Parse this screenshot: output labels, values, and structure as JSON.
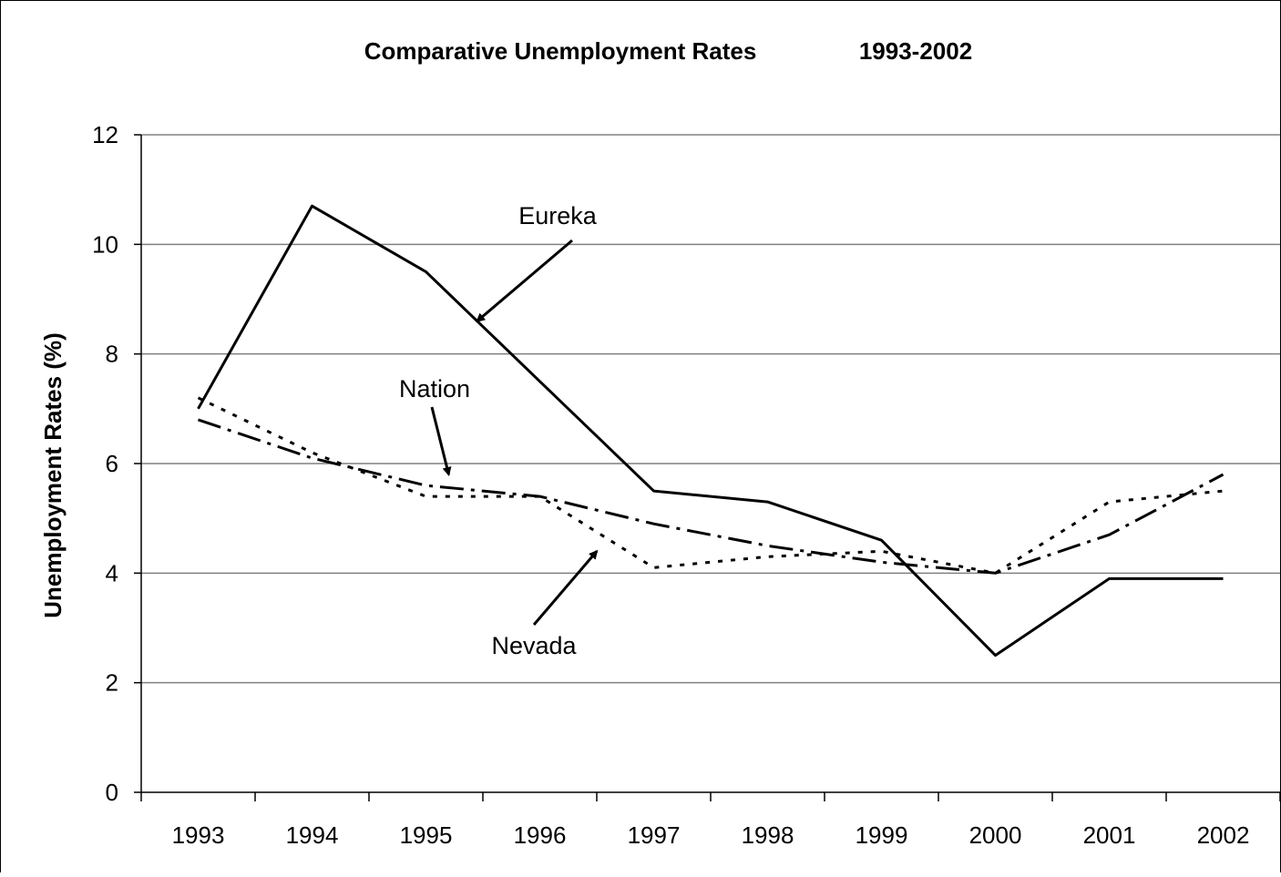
{
  "chart_data": {
    "type": "line",
    "title_left": "Comparative Unemployment Rates",
    "title_right": "1993-2002",
    "xlabel": "",
    "ylabel": "Unemployment Rates (%)",
    "categories": [
      "1993",
      "1994",
      "1995",
      "1996",
      "1997",
      "1998",
      "1999",
      "2000",
      "2001",
      "2002"
    ],
    "yticks": [
      0,
      2,
      4,
      6,
      8,
      10,
      12
    ],
    "ylim": [
      0,
      12
    ],
    "grid": "horizontal",
    "legend": "none",
    "series": [
      {
        "name": "Eureka",
        "style": "solid",
        "values": [
          7.0,
          10.7,
          9.5,
          7.5,
          5.5,
          5.3,
          4.6,
          2.5,
          3.9,
          3.9
        ]
      },
      {
        "name": "Nation",
        "style": "dash-dot",
        "values": [
          6.8,
          6.1,
          5.6,
          5.4,
          4.9,
          4.5,
          4.2,
          4.0,
          4.7,
          5.8
        ]
      },
      {
        "name": "Nevada",
        "style": "dotted",
        "values": [
          7.2,
          6.2,
          5.4,
          5.4,
          4.1,
          4.3,
          4.4,
          4.0,
          5.3,
          5.5
        ]
      }
    ],
    "annotations": [
      {
        "text": "Eureka",
        "target_x": 1995.45,
        "target_y": 8.6
      },
      {
        "text": "Nation",
        "target_x": 1995.2,
        "target_y": 5.8
      },
      {
        "text": "Nevada",
        "target_x": 1996.5,
        "target_y": 4.4
      }
    ],
    "colors": {
      "line": "#000000",
      "grid": "#808080",
      "background": "#ffffff"
    }
  }
}
